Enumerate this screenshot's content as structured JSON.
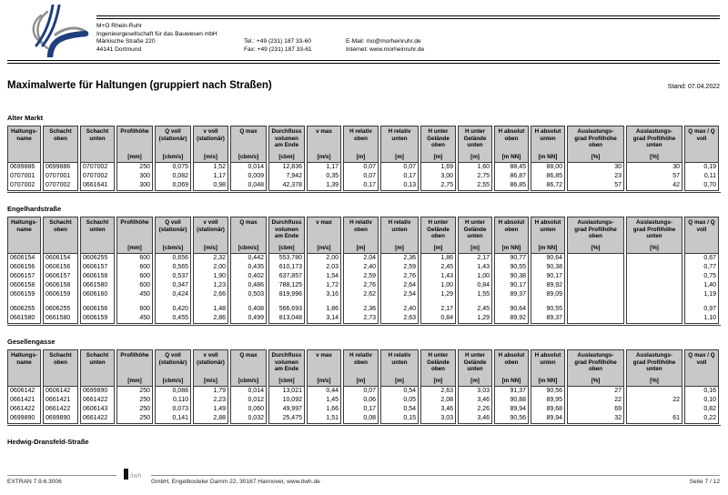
{
  "letterhead": {
    "company_lines": [
      "M+O Rhein-Ruhr",
      "Ingenieurgesellschaft für das Bauwesen mbH",
      "Märkische Straße 220",
      "44141 Dortmund"
    ],
    "tel": "Tel.: +49 (231) 187 33-60",
    "fax": "Fax: +49 (231) 187 33-61",
    "email": "E-Mail: mo@morheinruhr.de",
    "internet": "Internet: www.morheinruhr.de"
  },
  "title": "Maximalwerte für Haltungen (gruppiert nach Straßen)",
  "stand": "Stand: 07.04.2022",
  "table_headers": {
    "labels": [
      "Haltungs-\nname",
      "Schacht\noben",
      "Schacht\nunten",
      "Profilhöhe",
      "Q voll\n(stationär)",
      "v voll\n(stationär)",
      "Q max",
      "Durchfluss\nvolumen\nam Ende",
      "v max",
      "H relativ\noben",
      "H relativ\nunten",
      "H unter\nGelände\noben",
      "H unter\nGelände\nunten",
      "H absolut\noben",
      "H absolut\nunten",
      "Auslastungs-\ngrad Profilhöhe\noben",
      "Auslastungs-\ngrad Profilhöhe\nunten",
      "Q max / Q\nvoll"
    ],
    "units": [
      "",
      "",
      "",
      "[mm]",
      "[cbm/s]",
      "[m/s]",
      "[cbm/s]",
      "[cbm]",
      "[m/s]",
      "[m]",
      "[m]",
      "[m]",
      "[m]",
      "[m NN]",
      "[m NN]",
      "[%]",
      "[%]",
      ""
    ]
  },
  "sections": [
    {
      "street": "Alter Markt",
      "rows": [
        {
          "cells": [
            "0699886",
            "0699886",
            "0707002",
            "250",
            "0,075",
            "1,52",
            "0,014",
            "12,836",
            "1,17",
            "0,07",
            "0,07",
            "1,69",
            "1,60",
            "88,45",
            "88,00",
            "30",
            "30",
            "0,19"
          ]
        },
        {
          "cells": [
            "0707001",
            "0707001",
            "0707002",
            "300",
            "0,082",
            "1,17",
            "0,009",
            "7,942",
            "0,35",
            "0,07",
            "0,17",
            "3,00",
            "2,75",
            "86,87",
            "86,85",
            "23",
            "57",
            "0,11"
          ]
        },
        {
          "cells": [
            "0707002",
            "0707002",
            "0661641",
            "300",
            "0,069",
            "0,98",
            "0,048",
            "42,378",
            "1,39",
            "0,17",
            "0,13",
            "2,75",
            "2,55",
            "86,85",
            "86,72",
            "57",
            "42",
            "0,70"
          ]
        }
      ]
    },
    {
      "street": "Engelhardstraße",
      "rows": [
        {
          "cells": [
            "0606154",
            "0606154",
            "0606255",
            "600",
            "0,656",
            "2,32",
            "0,442",
            "553,780",
            "2,00",
            "2,04",
            "2,36",
            "1,86",
            "2,17",
            "90,77",
            "90,64",
            "",
            "",
            "0,67"
          ]
        },
        {
          "cells": [
            "0606156",
            "0606156",
            "0606157",
            "600",
            "0,565",
            "2,00",
            "0,435",
            "610,173",
            "2,03",
            "2,40",
            "2,59",
            "2,45",
            "1,43",
            "90,55",
            "90,38",
            "",
            "",
            "0,77"
          ]
        },
        {
          "cells": [
            "0606157",
            "0606157",
            "0606158",
            "600",
            "0,537",
            "1,90",
            "0,402",
            "637,857",
            "1,54",
            "2,59",
            "2,76",
            "1,43",
            "1,00",
            "90,38",
            "90,17",
            "",
            "",
            "0,75"
          ]
        },
        {
          "cells": [
            "0606158",
            "0606158",
            "0661580",
            "600",
            "0,347",
            "1,23",
            "0,486",
            "788,125",
            "1,72",
            "2,76",
            "2,64",
            "1,00",
            "0,84",
            "90,17",
            "89,92",
            "",
            "",
            "1,40"
          ]
        },
        {
          "cells": [
            "0606159",
            "0606159",
            "0606160",
            "450",
            "0,424",
            "2,66",
            "0,503",
            "819,996",
            "3,16",
            "2,62",
            "2,54",
            "1,29",
            "1,55",
            "89,37",
            "89,09",
            "",
            "",
            "1,19"
          ]
        },
        {
          "spacer": true
        },
        {
          "cells": [
            "0606255",
            "0606255",
            "0606156",
            "600",
            "0,420",
            "1,48",
            "0,408",
            "566,693",
            "1,86",
            "2,36",
            "2,40",
            "2,17",
            "2,45",
            "90,64",
            "90,55",
            "",
            "",
            "0,97"
          ]
        },
        {
          "cells": [
            "0661580",
            "0661580",
            "0606159",
            "450",
            "0,455",
            "2,86",
            "0,499",
            "813,048",
            "3,14",
            "2,73",
            "2,63",
            "0,84",
            "1,29",
            "89,92",
            "89,37",
            "",
            "",
            "1,10"
          ]
        }
      ]
    },
    {
      "street": "Gesellengasse",
      "rows": [
        {
          "cells": [
            "0606142",
            "0606142",
            "0699890",
            "250",
            "0,088",
            "1,79",
            "0,014",
            "13,021",
            "0,44",
            "0,07",
            "0,54",
            "2,63",
            "3,03",
            "91,37",
            "90,56",
            "27",
            "",
            "0,16"
          ]
        },
        {
          "cells": [
            "0661421",
            "0661421",
            "0661422",
            "250",
            "0,110",
            "2,23",
            "0,012",
            "10,092",
            "1,45",
            "0,06",
            "0,05",
            "2,08",
            "3,46",
            "90,88",
            "89,95",
            "22",
            "22",
            "0,10"
          ]
        },
        {
          "cells": [
            "0661422",
            "0661422",
            "0606143",
            "250",
            "0,073",
            "1,49",
            "0,060",
            "49,997",
            "1,66",
            "0,17",
            "0,54",
            "3,46",
            "2,26",
            "89,94",
            "89,68",
            "69",
            "",
            "0,82"
          ]
        },
        {
          "cells": [
            "0699890",
            "0699890",
            "0661422",
            "250",
            "0,141",
            "2,88",
            "0,032",
            "25,475",
            "1,51",
            "0,08",
            "0,15",
            "3,03",
            "3,46",
            "90,56",
            "89,94",
            "32",
            "61",
            "0,22"
          ]
        }
      ]
    },
    {
      "street": "Hedwig-Dransfeld-Straße",
      "rows": []
    }
  ],
  "footer": {
    "program": "EXTRAN 7.9.6.3006",
    "itwh_mark": "itwh",
    "address": "GmbH, Engelbosteler Damm 22, 30167 Hannover, www.itwh.de",
    "page": "Seite 7 / 12"
  }
}
